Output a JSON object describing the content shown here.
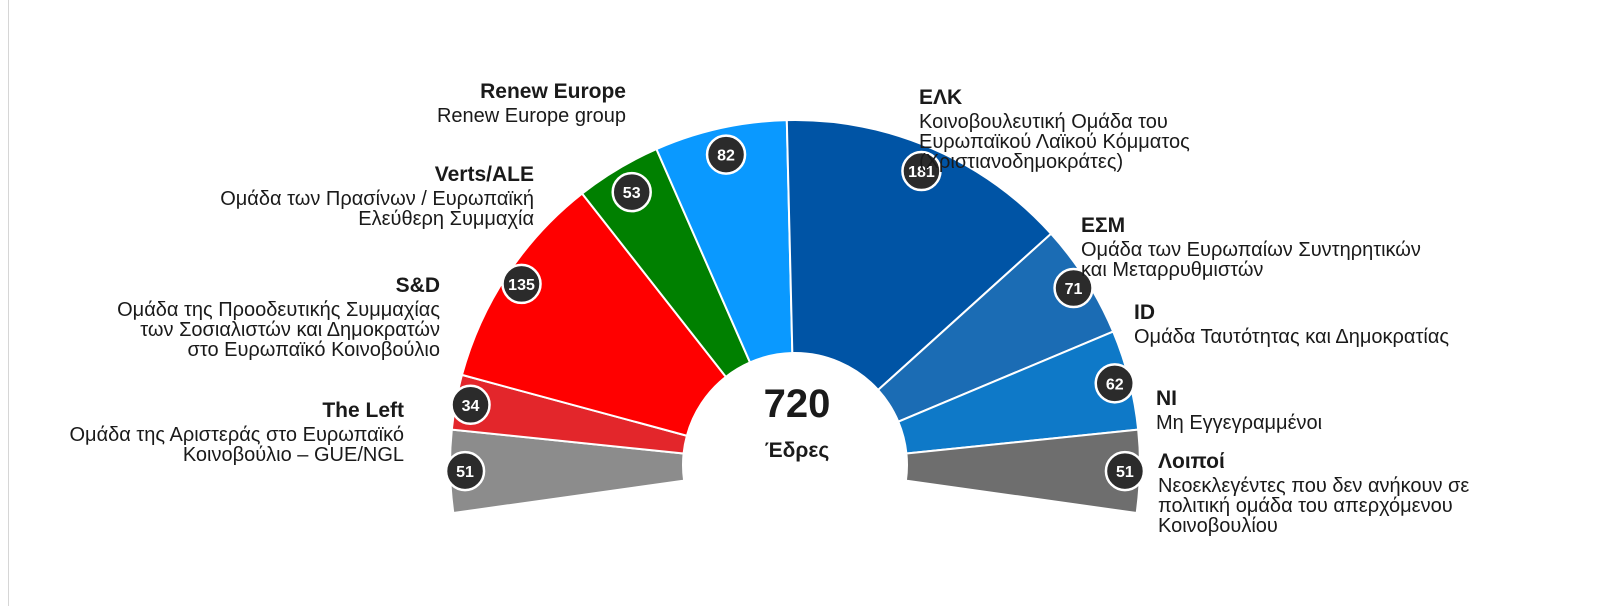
{
  "chart_data": {
    "type": "pie",
    "total": {
      "value": "720",
      "label": "Έδρες"
    },
    "groups": [
      {
        "name": "Λοιποί",
        "desc": [
          "Νεοεκλεγέντες που δεν ανήκουν σε",
          "πολιτική ομάδα του απερχόμενου",
          "Κοινοβουλίου"
        ],
        "seats": 51,
        "color": "#8c8c8c"
      },
      {
        "name": "The Left",
        "desc": [
          "Ομάδα της Αριστεράς στο Ευρωπαϊκό",
          "Κοινοβούλιο – GUE/NGL"
        ],
        "seats": 34,
        "color": "#e3262b"
      },
      {
        "name": "S&D",
        "desc": [
          "Ομάδα της Προοδευτικής Συμμαχίας",
          "των Σοσιαλιστών και Δημοκρατών",
          "στο Ευρωπαϊκό Κοινοβούλιο"
        ],
        "seats": 135,
        "color": "#ff0000"
      },
      {
        "name": "Verts/ALE",
        "desc": [
          "Ομάδα των Πρασίνων / Ευρωπαϊκή",
          "Ελεύθερη Συμμαχία"
        ],
        "seats": 53,
        "color": "#008000"
      },
      {
        "name": "Renew Europe",
        "desc": [
          "Renew Europe group"
        ],
        "seats": 82,
        "color": "#0a99ff"
      },
      {
        "name": "ΕΛΚ",
        "desc": [
          "Κοινοβουλευτική Ομάδα του",
          "Ευρωπαϊκού Λαϊκού Κόμματος",
          "(Χριστιανοδημοκράτες)"
        ],
        "seats": 181,
        "color": "#0054a5"
      },
      {
        "name": "ΕΣΜ",
        "desc": [
          "Ομάδα των Ευρωπαίων Συντηρητικών",
          "και Μεταρρυθμιστών"
        ],
        "seats": 71,
        "color": "#1b6cb4"
      },
      {
        "name": "ID",
        "desc": [
          "Ομάδα Ταυτότητας και Δημοκρατίας"
        ],
        "seats": 62,
        "color": "#0e79c8"
      },
      {
        "name": "NI",
        "desc": [
          "Μη Εγγεγραμμένοι"
        ],
        "seats": 51,
        "color": "#6e6e6e"
      }
    ]
  }
}
